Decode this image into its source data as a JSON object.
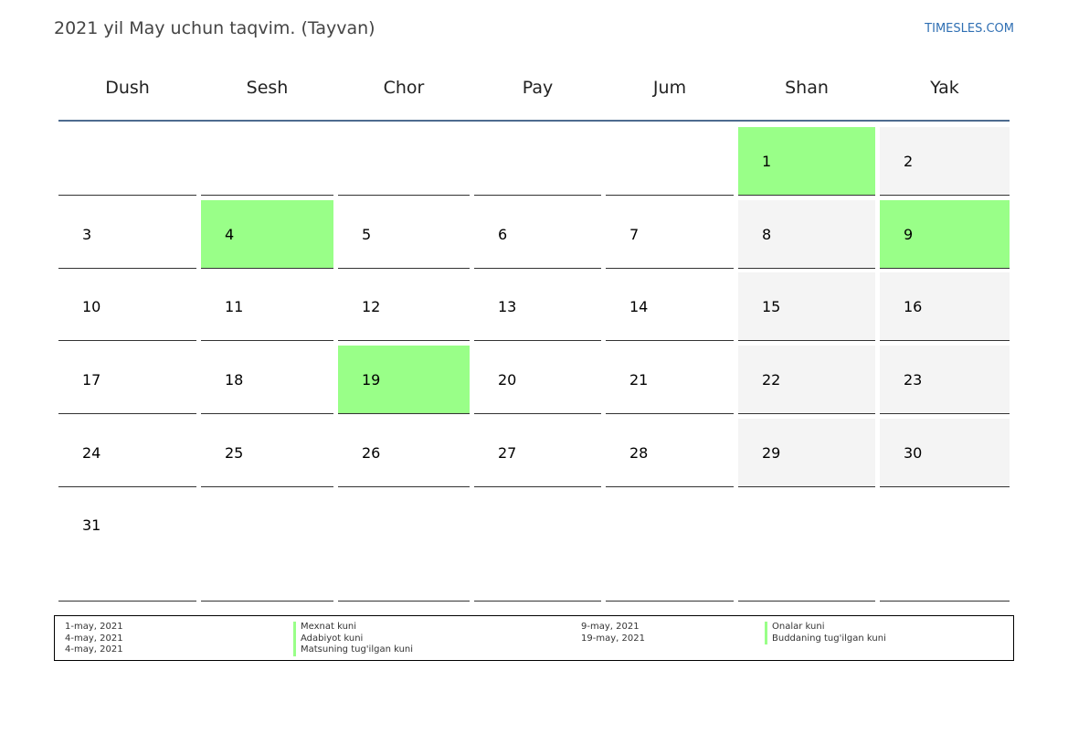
{
  "header": {
    "title": "2021 yil May uchun taqvim. (Tayvan)",
    "site": "TIMESLES.COM"
  },
  "weekdays": [
    "Dush",
    "Sesh",
    "Chor",
    "Pay",
    "Jum",
    "Shan",
    "Yak"
  ],
  "colors": {
    "holiday": "#99ff88",
    "weekend": "#f4f4f4",
    "header_rule": "#4e6b8f",
    "link": "#2f6fb3"
  },
  "weeks": [
    [
      "",
      "",
      "",
      "",
      "",
      "1",
      "2"
    ],
    [
      "3",
      "4",
      "5",
      "6",
      "7",
      "8",
      "9"
    ],
    [
      "10",
      "11",
      "12",
      "13",
      "14",
      "15",
      "16"
    ],
    [
      "17",
      "18",
      "19",
      "20",
      "21",
      "22",
      "23"
    ],
    [
      "24",
      "25",
      "26",
      "27",
      "28",
      "29",
      "30"
    ],
    [
      "31",
      "",
      "",
      "",
      "",
      "",
      ""
    ]
  ],
  "holiday_days": [
    "1",
    "4",
    "9",
    "19"
  ],
  "holidays": [
    {
      "date": "1-may, 2021",
      "name": "Mexnat kuni"
    },
    {
      "date": "4-may, 2021",
      "name": "Adabiyot kuni"
    },
    {
      "date": "4-may, 2021",
      "name": "Matsuning tug'ilgan kuni"
    },
    {
      "date": "9-may, 2021",
      "name": "Onalar kuni"
    },
    {
      "date": "19-may, 2021",
      "name": "Buddaning tug'ilgan kuni"
    }
  ]
}
